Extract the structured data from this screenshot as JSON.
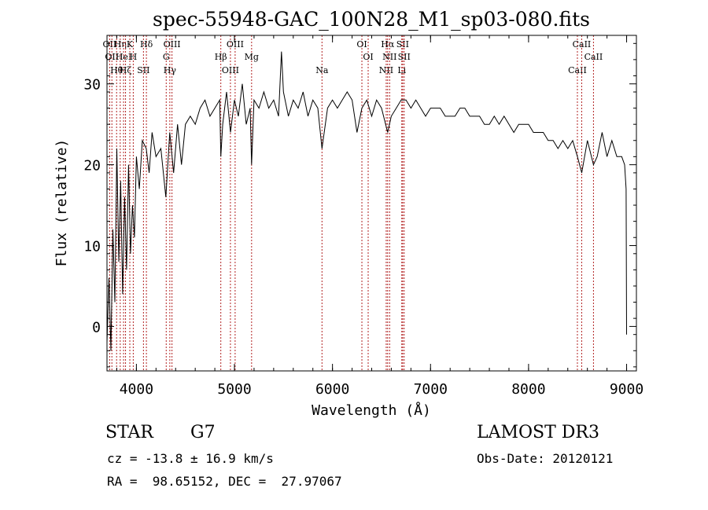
{
  "chart_data": {
    "type": "line",
    "title": "spec-55948-GAC_100N28_M1_sp03-080.fits",
    "xlabel": "Wavelength (Å)",
    "ylabel": "Flux (relative)",
    "xlim": [
      3700,
      9100
    ],
    "ylim": [
      -5.5,
      36
    ],
    "x_ticks": [
      4000,
      5000,
      6000,
      7000,
      8000,
      9000
    ],
    "y_ticks": [
      0,
      10,
      20,
      30
    ],
    "x_tick_labels": [
      "4000",
      "5000",
      "6000",
      "7000",
      "8000",
      "9000"
    ],
    "y_tick_labels": [
      "0",
      "10",
      "20",
      "30"
    ],
    "series": [
      {
        "name": "spectrum",
        "x": [
          3700,
          3720,
          3740,
          3760,
          3780,
          3800,
          3820,
          3840,
          3860,
          3880,
          3900,
          3920,
          3940,
          3960,
          3980,
          4000,
          4030,
          4060,
          4100,
          4130,
          4160,
          4200,
          4250,
          4300,
          4340,
          4380,
          4420,
          4460,
          4500,
          4550,
          4600,
          4650,
          4700,
          4750,
          4800,
          4850,
          4861,
          4880,
          4920,
          4960,
          5000,
          5040,
          5080,
          5120,
          5160,
          5175,
          5200,
          5250,
          5300,
          5350,
          5400,
          5450,
          5480,
          5500,
          5550,
          5600,
          5650,
          5700,
          5750,
          5800,
          5850,
          5893,
          5950,
          6000,
          6050,
          6100,
          6150,
          6200,
          6250,
          6300,
          6350,
          6400,
          6450,
          6500,
          6563,
          6600,
          6650,
          6700,
          6750,
          6800,
          6850,
          6900,
          6950,
          7000,
          7050,
          7100,
          7150,
          7200,
          7250,
          7300,
          7350,
          7400,
          7450,
          7500,
          7550,
          7600,
          7650,
          7700,
          7750,
          7800,
          7850,
          7900,
          7950,
          8000,
          8050,
          8100,
          8150,
          8200,
          8250,
          8300,
          8350,
          8400,
          8450,
          8498,
          8542,
          8600,
          8662,
          8700,
          8750,
          8800,
          8850,
          8900,
          8950,
          8980,
          8995,
          9000
        ],
        "y": [
          -2,
          6,
          -3,
          12,
          3,
          22,
          8,
          18,
          4,
          16,
          7,
          20,
          9,
          15,
          11,
          21,
          17,
          23,
          22,
          19,
          24,
          21,
          22,
          16,
          24,
          19,
          25,
          20,
          25,
          26,
          25,
          27,
          28,
          26,
          27,
          28,
          21,
          25,
          29,
          24,
          28,
          26,
          30,
          25,
          27,
          20,
          28,
          27,
          29,
          27,
          28,
          26,
          34,
          29,
          26,
          28,
          27,
          29,
          26,
          28,
          27,
          22,
          27,
          28,
          27,
          28,
          29,
          28,
          24,
          27,
          28,
          26,
          28,
          27,
          24,
          26,
          27,
          28,
          28,
          27,
          28,
          27,
          26,
          27,
          27,
          27,
          26,
          26,
          26,
          27,
          27,
          26,
          26,
          26,
          25,
          25,
          26,
          25,
          26,
          25,
          24,
          25,
          25,
          25,
          24,
          24,
          24,
          23,
          23,
          22,
          23,
          22,
          23,
          21,
          19,
          23,
          20,
          21,
          24,
          21,
          23,
          21,
          21,
          20,
          17,
          -1
        ]
      }
    ],
    "lines": [
      {
        "wave": 3727,
        "label": "OII"
      },
      {
        "wave": 3750,
        "label": "OII"
      },
      {
        "wave": 3798,
        "label": "Hθ"
      },
      {
        "wave": 3835,
        "label": "Hη"
      },
      {
        "wave": 3869,
        "label": "HeI"
      },
      {
        "wave": 3889,
        "label": "Hζ"
      },
      {
        "wave": 3933,
        "label": "K"
      },
      {
        "wave": 3968,
        "label": "H"
      },
      {
        "wave": 4072,
        "label": "SII"
      },
      {
        "wave": 4102,
        "label": "Hδ"
      },
      {
        "wave": 4304,
        "label": "G"
      },
      {
        "wave": 4341,
        "label": "Hγ"
      },
      {
        "wave": 4363,
        "label": "OIII"
      },
      {
        "wave": 4861,
        "label": "Hβ"
      },
      {
        "wave": 4959,
        "label": "OIII"
      },
      {
        "wave": 5007,
        "label": "OIII"
      },
      {
        "wave": 5175,
        "label": "Mg"
      },
      {
        "wave": 5893,
        "label": "Na"
      },
      {
        "wave": 6300,
        "label": "OI"
      },
      {
        "wave": 6364,
        "label": "OI"
      },
      {
        "wave": 6548,
        "label": "NII"
      },
      {
        "wave": 6563,
        "label": "Hα"
      },
      {
        "wave": 6583,
        "label": "NII"
      },
      {
        "wave": 6707,
        "label": "Li"
      },
      {
        "wave": 6716,
        "label": "SII"
      },
      {
        "wave": 6731,
        "label": "SII"
      },
      {
        "wave": 8498,
        "label": "CaII"
      },
      {
        "wave": 8542,
        "label": "CaII"
      },
      {
        "wave": 8662,
        "label": "CaII"
      }
    ],
    "line_label_tiers": [
      "top",
      "middle",
      "bottom"
    ],
    "line_color": "#b22222"
  },
  "info": {
    "object_class": "STAR",
    "subclass": "G7",
    "survey": "LAMOST DR3",
    "redshift": "cz = -13.8 ± 16.9 km/s",
    "obs_date": "Obs-Date: 20120121",
    "coords": "RA =  98.65152, DEC =  27.97067"
  }
}
